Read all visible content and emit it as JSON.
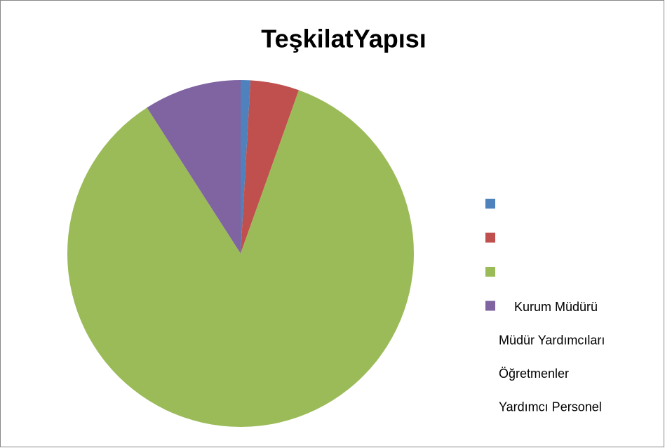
{
  "chart_data": {
    "type": "pie",
    "title": "TeşkilatYapısı",
    "categories": [
      "Kurum Müdürü",
      "Müdür Yardımcıları",
      "Öğretmenler",
      "Yardımcı Personel"
    ],
    "values": [
      1,
      5,
      94,
      10
    ],
    "colors": [
      "#4f81bd",
      "#c0504d",
      "#9bbb59",
      "#8064a2"
    ]
  }
}
